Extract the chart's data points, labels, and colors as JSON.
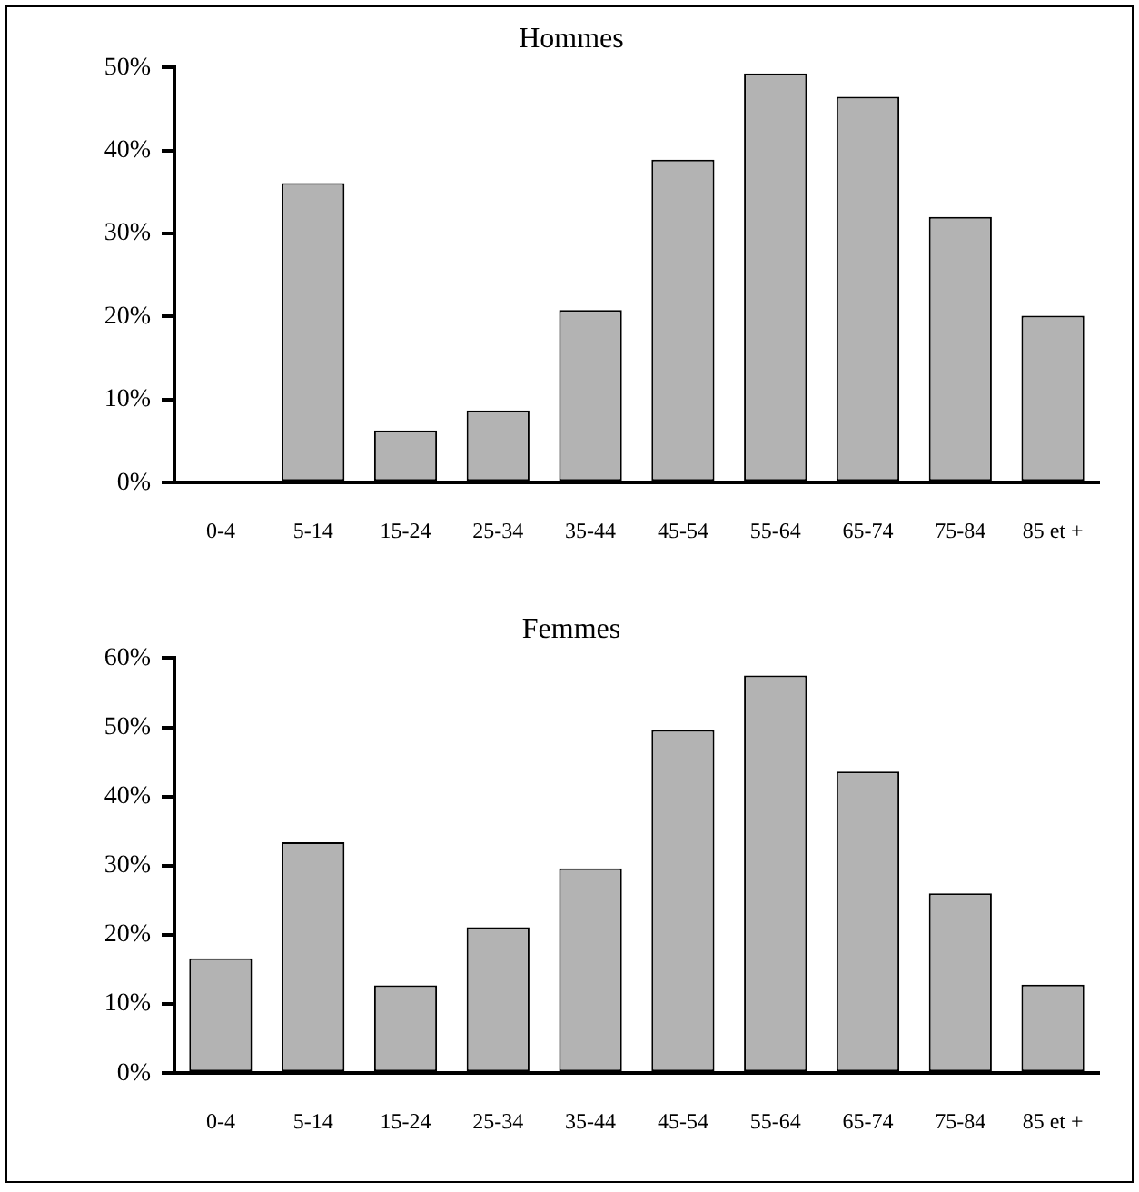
{
  "chart_data": [
    {
      "type": "bar",
      "title": "Hommes",
      "categories": [
        "0-4",
        "5-14",
        "15-24",
        "25-34",
        "35-44",
        "45-54",
        "55-64",
        "65-74",
        "75-84",
        "85 et +"
      ],
      "values": [
        0,
        36.1,
        6.3,
        8.7,
        20.8,
        38.9,
        49.3,
        46.5,
        32.0,
        20.1
      ],
      "color": "#b3b3b3",
      "ylim": [
        0,
        50
      ],
      "yticks": [
        {
          "value": 0,
          "label": "0%"
        },
        {
          "value": 10,
          "label": "10%"
        },
        {
          "value": 20,
          "label": "20%"
        },
        {
          "value": 30,
          "label": "30%"
        },
        {
          "value": 40,
          "label": "40%"
        },
        {
          "value": 50,
          "label": "50%"
        }
      ],
      "grid": false,
      "legend": false
    },
    {
      "type": "bar",
      "title": "Femmes",
      "categories": [
        "0-4",
        "5-14",
        "15-24",
        "25-34",
        "35-44",
        "45-54",
        "55-64",
        "65-74",
        "75-84",
        "85 et +"
      ],
      "values": [
        16.6,
        33.4,
        12.7,
        21.1,
        29.6,
        49.6,
        57.5,
        43.6,
        26.0,
        12.8
      ],
      "color": "#b3b3b3",
      "ylim": [
        0,
        60
      ],
      "yticks": [
        {
          "value": 0,
          "label": "0%"
        },
        {
          "value": 10,
          "label": "10%"
        },
        {
          "value": 20,
          "label": "20%"
        },
        {
          "value": 30,
          "label": "30%"
        },
        {
          "value": 40,
          "label": "40%"
        },
        {
          "value": 50,
          "label": "50%"
        },
        {
          "value": 60,
          "label": "60%"
        }
      ],
      "grid": false,
      "legend": false
    }
  ]
}
